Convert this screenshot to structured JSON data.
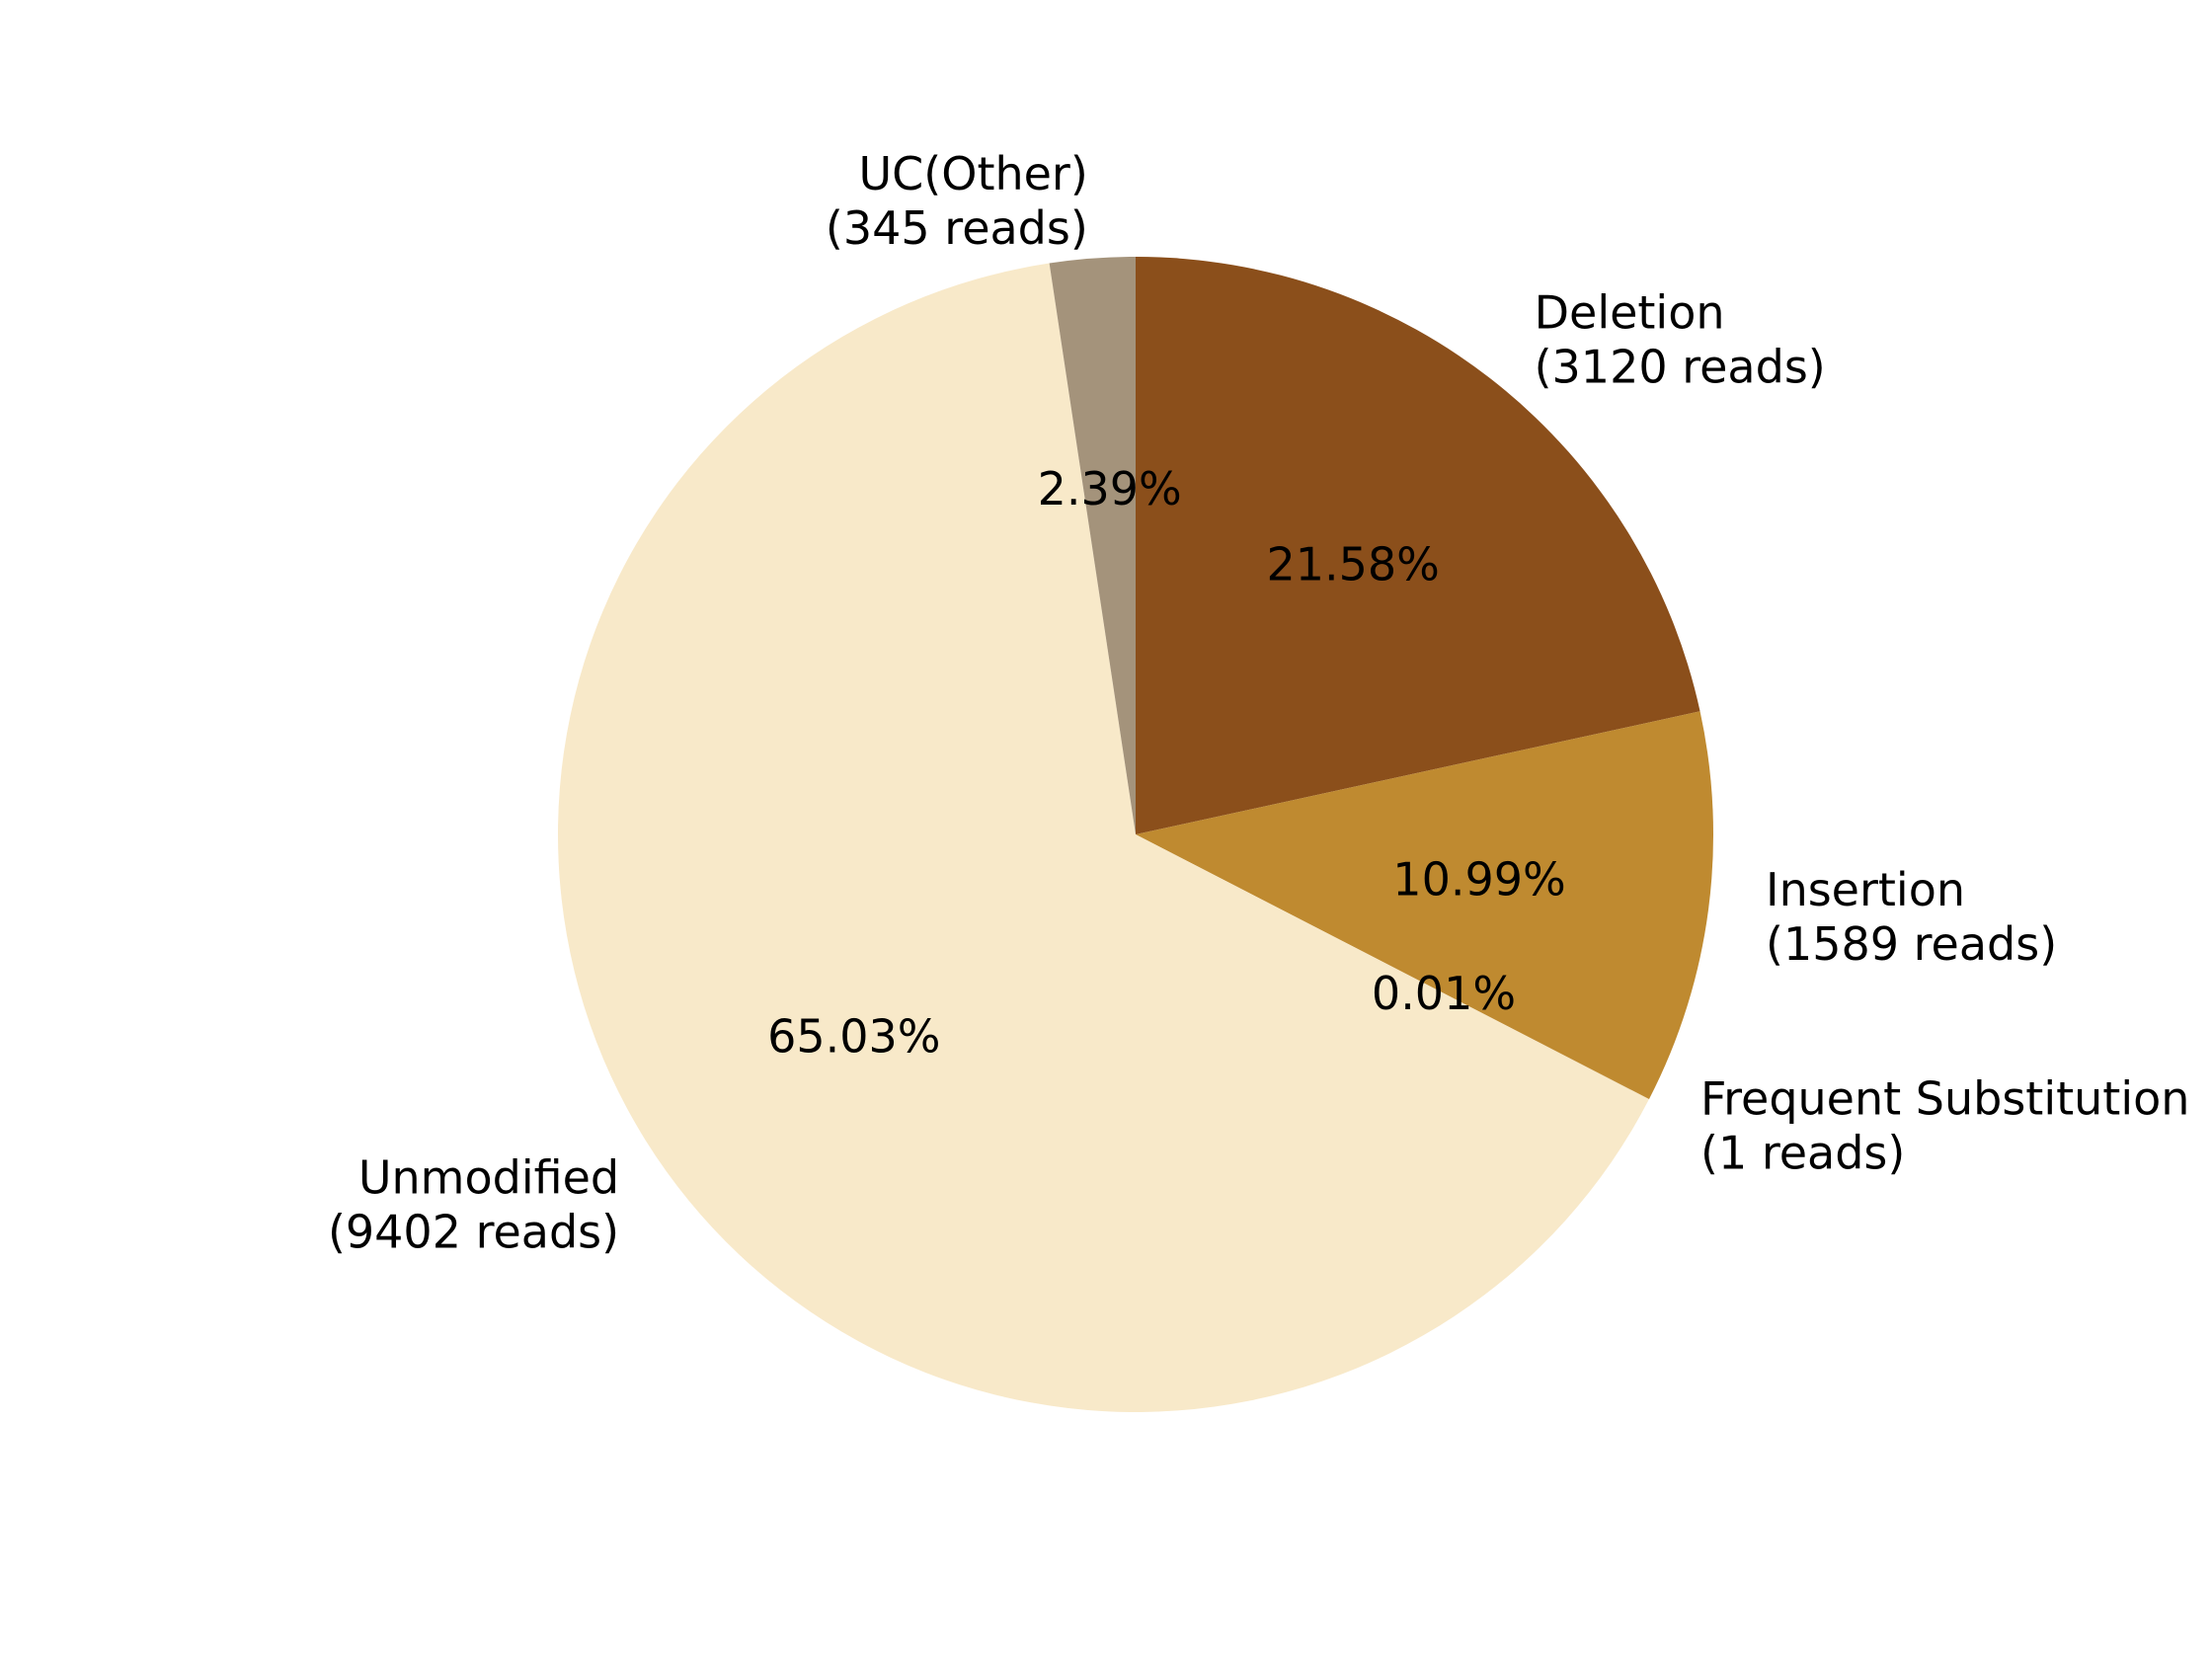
{
  "chart_data": {
    "type": "pie",
    "title": "",
    "slices": [
      {
        "name": "Deletion",
        "reads_label": "(3120 reads)",
        "value": 3120,
        "pct_label": "21.58%",
        "color": "#8B4F1B"
      },
      {
        "name": "Insertion",
        "reads_label": "(1589 reads)",
        "value": 1589,
        "pct_label": "10.99%",
        "color": "#BF8A30"
      },
      {
        "name": "Frequent Substitution",
        "reads_label": "(1 reads)",
        "value": 1,
        "pct_label": "0.01%",
        "color": "#BF8A30"
      },
      {
        "name": "Unmodified",
        "reads_label": "(9402 reads)",
        "value": 9402,
        "pct_label": "65.03%",
        "color": "#F8E9C9"
      },
      {
        "name": "UC(Other)",
        "reads_label": "(345 reads)",
        "value": 345,
        "pct_label": "2.39%",
        "color": "#A4937B"
      }
    ],
    "start_angle_deg": 90,
    "direction": "clockwise",
    "legend": "none"
  }
}
